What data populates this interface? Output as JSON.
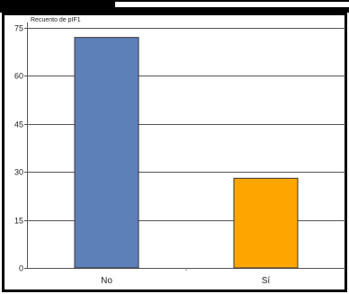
{
  "chart_data": {
    "type": "bar",
    "ylabel": "Recuento de pIF1",
    "categories": [
      "No",
      "Sí"
    ],
    "values": [
      72,
      28
    ],
    "colors": [
      "#5e80b8",
      "#ffa500"
    ],
    "ylim": [
      0,
      75
    ],
    "yticks": [
      0,
      15,
      30,
      45,
      60,
      75
    ],
    "grid": true
  }
}
